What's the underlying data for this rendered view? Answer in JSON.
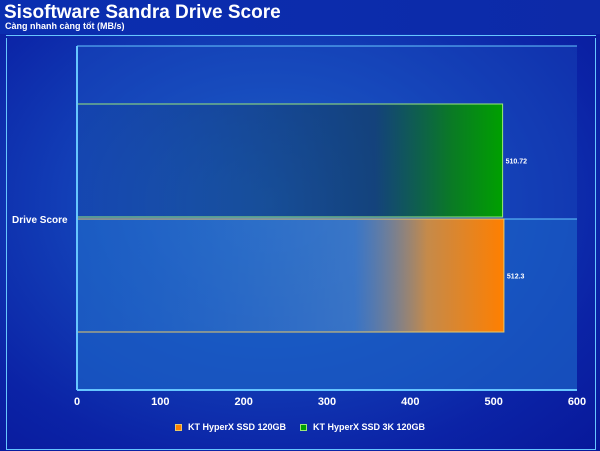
{
  "header": {
    "title": "Sisoftware Sandra Drive Score",
    "subtitle": "Càng nhanh càng tốt (MB/s)"
  },
  "colors": {
    "series_a": "#ff7f00",
    "series_b": "#00a000",
    "axis": "#66c6ff"
  },
  "chart_data": {
    "type": "bar",
    "orientation": "horizontal",
    "title": "Sisoftware Sandra Drive Score",
    "subtitle": "Càng nhanh càng tốt (MB/s)",
    "categories": [
      "Drive Score"
    ],
    "series": [
      {
        "name": "KT HyperX SSD 120GB",
        "values": [
          512.3
        ],
        "color": "#ff7f00"
      },
      {
        "name": "KT HyperX SSD 3K 120GB",
        "values": [
          510.72
        ],
        "color": "#00a000"
      }
    ],
    "value_labels": [
      "512.3",
      "510.72"
    ],
    "xlim": [
      0,
      600
    ],
    "xticks": [
      "0",
      "100",
      "200",
      "300",
      "400",
      "500",
      "600"
    ],
    "grid": false,
    "legend_position": "bottom"
  }
}
